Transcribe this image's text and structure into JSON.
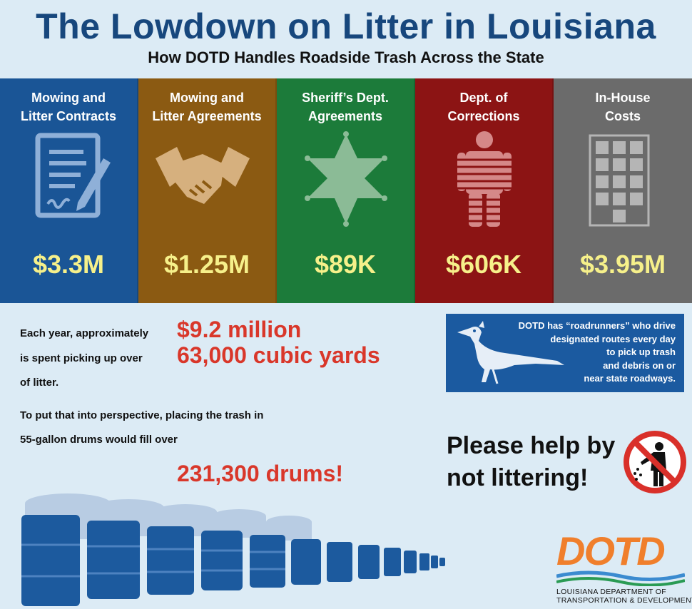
{
  "header": {
    "title": "The Lowdown on Litter in Louisiana",
    "subtitle": "How DOTD Handles Roadside Trash Across the State"
  },
  "panels": [
    {
      "label": "Mowing and\nLitter Contracts",
      "amount": "$3.3M",
      "color": "#1a5596",
      "icon": "contract-icon"
    },
    {
      "label": "Mowing and\nLitter Agreements",
      "amount": "$1.25M",
      "color": "#8b5a12",
      "icon": "handshake-icon"
    },
    {
      "label": "Sheriff’s Dept.\nAgreements",
      "amount": "$89K",
      "color": "#1c7b3a",
      "icon": "sheriff-star-icon"
    },
    {
      "label": "Dept. of\nCorrections",
      "amount": "$606K",
      "color": "#8c1414",
      "icon": "prisoner-icon"
    },
    {
      "label": "In-House\nCosts",
      "amount": "$3.95M",
      "color": "#6b6b6b",
      "icon": "building-icon"
    }
  ],
  "facts": {
    "line1": "Each year, approximately",
    "line2": "is spent picking up over",
    "line3": "of litter.",
    "cost": "$9.2 million",
    "volume": "63,000 cubic yards",
    "perspective1": "To put that into perspective, placing the trash in",
    "perspective2": "55-gallon drums would fill over",
    "drums": "231,300 drums!"
  },
  "roadrunner": {
    "line1": "DOTD has “roadrunners” who drive",
    "line2": "designated routes every day",
    "line3": "to pick up trash",
    "line4": "and debris on or",
    "line5": "near state roadways."
  },
  "help": {
    "line1": "Please help by",
    "line2": "not littering!"
  },
  "logo": {
    "word": "DOTD",
    "line1": "LOUISIANA DEPARTMENT OF",
    "line2": "TRANSPORTATION & DEVELOPMENT"
  }
}
